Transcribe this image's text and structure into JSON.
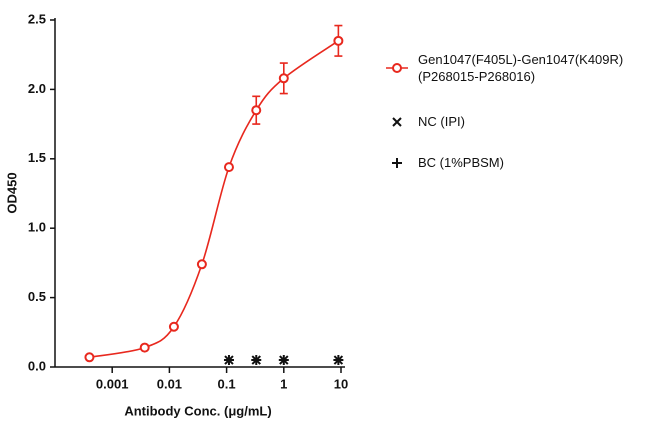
{
  "chart_data": {
    "type": "scatter",
    "x_label": "Antibody Conc. (μg/mL)",
    "y_label": "OD450",
    "log_x": true,
    "xlim": [
      0.0001,
      10
    ],
    "xticks": [
      0.001,
      0.01,
      0.1,
      1,
      10
    ],
    "ylim": [
      0,
      2.5
    ],
    "yticks": [
      {
        "value": 0,
        "label": "0.0"
      },
      {
        "value": 0.5,
        "label": "0.5"
      },
      {
        "value": 1,
        "label": "1.0"
      },
      {
        "value": 1.5,
        "label": "1.5"
      },
      {
        "value": 2,
        "label": "2.0"
      },
      {
        "value": 2.5,
        "label": "2.5"
      }
    ],
    "series": [
      {
        "name": "Gen1047(F405L)-Gen1047(K409R)\n(P268015-P268016)",
        "color": "#e8281e",
        "marker": "circle",
        "curve": true,
        "x": [
          0.0004,
          0.0037,
          0.012,
          0.037,
          0.11,
          0.33,
          1,
          9
        ],
        "values": [
          0.07,
          0.14,
          0.29,
          0.74,
          1.44,
          1.85,
          2.08,
          2.35
        ],
        "errors": [
          null,
          null,
          null,
          null,
          null,
          0.1,
          0.11,
          0.11
        ]
      },
      {
        "name": "NC (IPI)",
        "color": "#111111",
        "marker": "x",
        "x": [
          0.11,
          0.33,
          1,
          9
        ],
        "values": [
          0.05,
          0.05,
          0.05,
          0.05
        ]
      },
      {
        "name": "BC (1%PBSM)",
        "color": "#111111",
        "marker": "plus",
        "x": [
          0.11,
          0.33,
          1,
          9
        ],
        "values": [
          0.05,
          0.05,
          0.05,
          0.05
        ]
      }
    ]
  }
}
